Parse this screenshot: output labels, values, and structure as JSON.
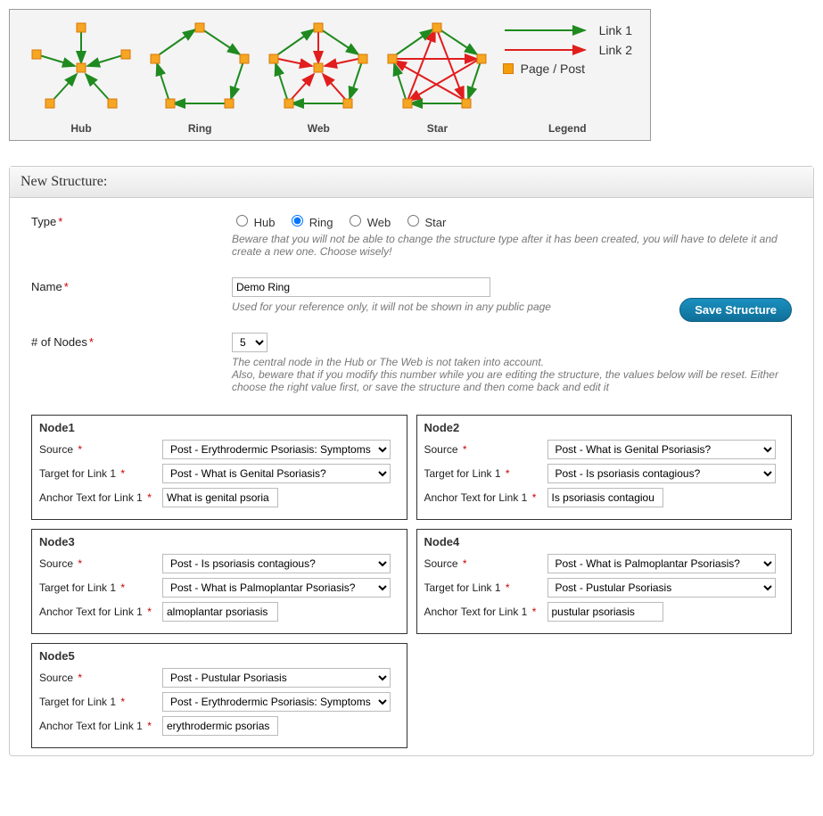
{
  "diagram": {
    "labels": {
      "hub": "Hub",
      "ring": "Ring",
      "web": "Web",
      "star": "Star",
      "legend": "Legend"
    },
    "colors": {
      "link1": "#1f8a1f",
      "link2": "#e11d1d",
      "node_fill": "#f5a623",
      "node_stroke": "#d97706",
      "box_bg": "#f4f4f4",
      "box_border": "#999999"
    },
    "legend": {
      "link1": "Link 1",
      "link2": "Link 2",
      "pagepost": "Page / Post"
    }
  },
  "panel": {
    "title": "New Structure:",
    "type": {
      "label": "Type",
      "options": {
        "hub": "Hub",
        "ring": "Ring",
        "web": "Web",
        "star": "Star"
      },
      "selected": "ring",
      "hint": "Beware that you will not be able to change the structure type after it has been created, you will have to delete it and create a new one. Choose wisely!"
    },
    "name": {
      "label": "Name",
      "value": "Demo Ring",
      "hint": "Used for your reference only, it will not be shown in any public page"
    },
    "nodes_count": {
      "label": "# of Nodes",
      "value": "5",
      "hint": "The central node in the Hub or The Web is not taken into account.\nAlso, beware that if you modify this number while you are editing the structure, the values below will be reset. Either choose the right value first, or save the structure and then come back and edit it"
    },
    "save_button": "Save Structure"
  },
  "node_labels": {
    "source": "Source",
    "target": "Target for Link 1",
    "anchor": "Anchor Text for Link 1"
  },
  "nodes": [
    {
      "title": "Node1",
      "source": "Post - Erythrodermic Psoriasis: Symptoms",
      "target": "Post - What is Genital Psoriasis?",
      "anchor": "What is genital psoria"
    },
    {
      "title": "Node2",
      "source": "Post - What is Genital Psoriasis?",
      "target": "Post - Is psoriasis contagious?",
      "anchor": "Is psoriasis contagiou"
    },
    {
      "title": "Node3",
      "source": "Post - Is psoriasis contagious?",
      "target": "Post - What is Palmoplantar Psoriasis?",
      "anchor": "almoplantar psoriasis"
    },
    {
      "title": "Node4",
      "source": "Post - What is Palmoplantar Psoriasis?",
      "target": "Post - Pustular Psoriasis",
      "anchor": "pustular psoriasis"
    },
    {
      "title": "Node5",
      "source": "Post - Pustular Psoriasis",
      "target": "Post - Erythrodermic Psoriasis: Symptoms",
      "anchor": "erythrodermic psorias"
    }
  ]
}
